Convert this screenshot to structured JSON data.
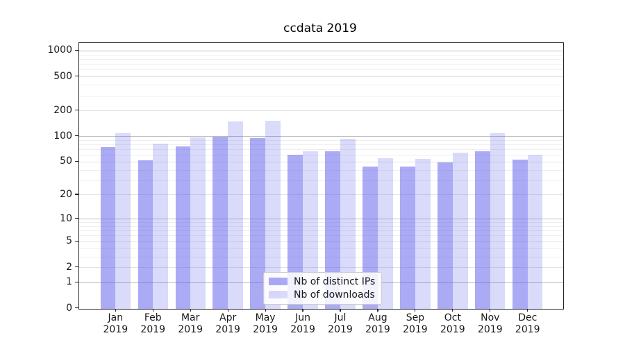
{
  "title": "ccdata 2019",
  "chart_data": {
    "type": "bar",
    "title": "ccdata 2019",
    "categories": [
      "Jan",
      "Feb",
      "Mar",
      "Apr",
      "May",
      "Jun",
      "Jul",
      "Aug",
      "Sep",
      "Oct",
      "Nov",
      "Dec"
    ],
    "year_label": "2019",
    "series": [
      {
        "name": "Nb of distinct IPs",
        "color": "#5555EB",
        "alpha": 0.5,
        "values": [
          75,
          52,
          77,
          100,
          96,
          61,
          67,
          44,
          44,
          49,
          67,
          53
        ]
      },
      {
        "name": "Nb of downloads",
        "color": "#5555EB",
        "alpha": 0.22,
        "values": [
          110,
          83,
          98,
          150,
          152,
          67,
          94,
          55,
          54,
          64,
          110,
          61
        ]
      }
    ],
    "yscale": "log1p",
    "yticks": [
      1000,
      500,
      200,
      100,
      50,
      20,
      10,
      5,
      2,
      1,
      0
    ],
    "ylim": [
      0,
      1250
    ],
    "grid": true,
    "gridline_levels": {
      "major": [
        1,
        10,
        100,
        1000
      ],
      "sub": [
        2,
        5,
        20,
        50,
        200,
        500
      ],
      "minor": [
        3,
        4,
        6,
        7,
        8,
        9,
        30,
        40,
        60,
        70,
        80,
        90,
        300,
        400,
        600,
        700,
        800,
        900
      ]
    },
    "legend_position": "lower center",
    "axis_color": "#262626",
    "background_color": "#ffffff"
  }
}
